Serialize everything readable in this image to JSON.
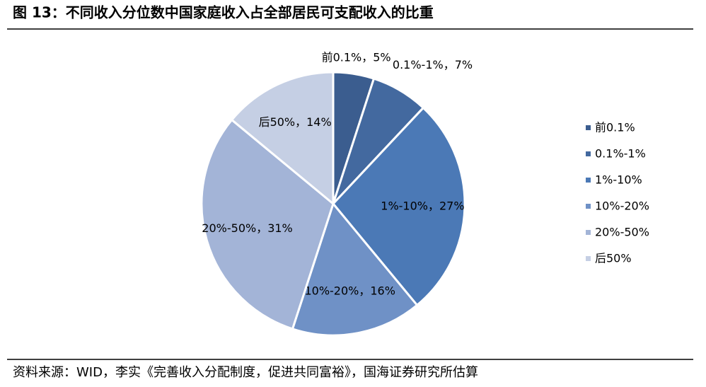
{
  "chart_data": {
    "type": "pie",
    "title": "图 13：不同收入分位数中国家庭收入占全部居民可支配收入的比重",
    "categories": [
      "前0.1%",
      "0.1%-1%",
      "1%-10%",
      "10%-20%",
      "20%-50%",
      "后50%"
    ],
    "values": [
      5,
      7,
      27,
      16,
      31,
      14
    ],
    "value_labels": [
      "前0.1%，5%",
      "0.1%-1%，7%",
      "1%-10%，27%",
      "10%-20%，16%",
      "20%-50%，31%",
      "后50%，14%"
    ],
    "colors": [
      "#3b5d8f",
      "#43699f",
      "#4b79b6",
      "#6f91c6",
      "#a3b4d7",
      "#c5cfe4"
    ],
    "legend": "right",
    "source": "资料来源：WID，李实《完善收入分配制度，促进共同富裕》，国海证券研究所估算"
  }
}
